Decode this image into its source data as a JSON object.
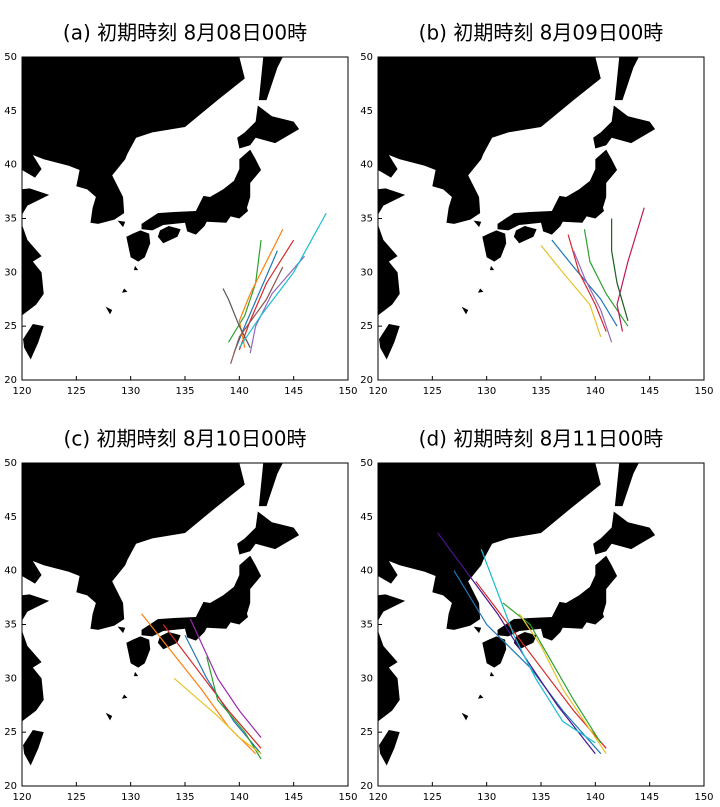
{
  "xlim": [
    120,
    150
  ],
  "ylim": [
    20,
    50
  ],
  "xticks": [
    120,
    125,
    130,
    135,
    140,
    145,
    150
  ],
  "yticks": [
    20,
    25,
    30,
    35,
    40,
    45,
    50
  ],
  "panels": [
    {
      "title": "(a) 初期時刻 8月08日00時",
      "tracks": [
        {
          "color": "#1f77b4",
          "lon": [
            139.5,
            140.5,
            142,
            143.5
          ],
          "lat": [
            22.5,
            25,
            28.5,
            32
          ]
        },
        {
          "color": "#d62728",
          "lon": [
            140,
            141,
            142.5,
            145
          ],
          "lat": [
            22.8,
            25.5,
            29,
            33
          ]
        },
        {
          "color": "#2ca02c",
          "lon": [
            139,
            140.5,
            141.5,
            142
          ],
          "lat": [
            23.5,
            26,
            29,
            33
          ]
        },
        {
          "color": "#9467bd",
          "lon": [
            141,
            141.5,
            143,
            146
          ],
          "lat": [
            22.5,
            25,
            28,
            31.5
          ]
        },
        {
          "color": "#ff7f0e",
          "lon": [
            140.5,
            140,
            141,
            144
          ],
          "lat": [
            23,
            25.5,
            28,
            34
          ]
        },
        {
          "color": "#555555",
          "lon": [
            141,
            140,
            139,
            138.5
          ],
          "lat": [
            23,
            25,
            27.5,
            28.5
          ]
        },
        {
          "color": "#17becf",
          "lon": [
            140,
            142,
            145,
            148
          ],
          "lat": [
            23,
            26,
            30,
            35.5
          ]
        },
        {
          "color": "#8c564b",
          "lon": [
            139.2,
            140,
            142.5,
            144
          ],
          "lat": [
            21.5,
            24,
            27.5,
            30.5
          ]
        }
      ]
    },
    {
      "title": "(b) 初期時刻 8月09日00時",
      "tracks": [
        {
          "color": "#1f77b4",
          "lon": [
            142,
            140.5,
            138,
            136
          ],
          "lat": [
            25,
            27.5,
            30.5,
            33
          ]
        },
        {
          "color": "#d62728",
          "lon": [
            141,
            140,
            138.5,
            137.5
          ],
          "lat": [
            24.5,
            27,
            30,
            33.5
          ]
        },
        {
          "color": "#2ca02c",
          "lon": [
            143,
            141,
            139.5,
            139
          ],
          "lat": [
            25,
            28,
            31,
            34
          ]
        },
        {
          "color": "#e6c229",
          "lon": [
            140.5,
            139.5,
            137,
            135
          ],
          "lat": [
            24,
            27,
            30,
            32.5
          ]
        },
        {
          "color": "#c2185b",
          "lon": [
            142.5,
            142,
            143,
            144.5
          ],
          "lat": [
            24.5,
            27,
            31,
            36
          ]
        },
        {
          "color": "#9467bd",
          "lon": [
            141.5,
            140.5,
            139,
            138
          ],
          "lat": [
            23.5,
            26.5,
            29.5,
            32
          ]
        },
        {
          "color": "#1b5e20",
          "lon": [
            143,
            142,
            141.5,
            141.5
          ],
          "lat": [
            25.5,
            29,
            32,
            35
          ]
        }
      ]
    },
    {
      "title": "(c) 初期時刻 8月10日00時",
      "tracks": [
        {
          "color": "#1f77b4",
          "lon": [
            142,
            139.5,
            137,
            135
          ],
          "lat": [
            23,
            26,
            30,
            34
          ]
        },
        {
          "color": "#d62728",
          "lon": [
            142,
            139,
            136,
            133
          ],
          "lat": [
            23.5,
            27,
            31,
            35
          ]
        },
        {
          "color": "#ff7f0e",
          "lon": [
            141.5,
            139,
            136.5,
            131
          ],
          "lat": [
            23,
            25.5,
            29,
            36
          ]
        },
        {
          "color": "#2ca02c",
          "lon": [
            142,
            140.5,
            138,
            137
          ],
          "lat": [
            22.5,
            25,
            28,
            32
          ]
        },
        {
          "color": "#9c27b0",
          "lon": [
            142,
            140,
            138,
            135.5
          ],
          "lat": [
            24.5,
            27,
            30,
            35.5
          ]
        },
        {
          "color": "#e6c229",
          "lon": [
            142,
            140,
            138,
            134
          ],
          "lat": [
            23,
            24.5,
            26.5,
            30
          ]
        }
      ]
    },
    {
      "title": "(d) 初期時刻 8月11日00時",
      "tracks": [
        {
          "color": "#1f77b4",
          "lon": [
            140.5,
            137,
            134,
            130,
            127
          ],
          "lat": [
            23,
            27,
            31,
            35,
            40
          ]
        },
        {
          "color": "#d62728",
          "lon": [
            141,
            138,
            135,
            132,
            129
          ],
          "lat": [
            23.5,
            27,
            31,
            35,
            39
          ]
        },
        {
          "color": "#4a148c",
          "lon": [
            140,
            136.5,
            133.5,
            131,
            125.5
          ],
          "lat": [
            23,
            27.5,
            32,
            36,
            43.5
          ]
        },
        {
          "color": "#2ca02c",
          "lon": [
            140.5,
            138,
            136,
            134,
            131.5
          ],
          "lat": [
            24,
            28,
            31.5,
            35,
            37
          ]
        },
        {
          "color": "#e6c229",
          "lon": [
            141,
            139,
            137,
            135,
            133
          ],
          "lat": [
            23,
            26,
            29,
            33,
            36
          ]
        },
        {
          "color": "#17becf",
          "lon": [
            140,
            137,
            134.5,
            132.5,
            129.5
          ],
          "lat": [
            24,
            26,
            30,
            34,
            42
          ]
        }
      ]
    }
  ]
}
